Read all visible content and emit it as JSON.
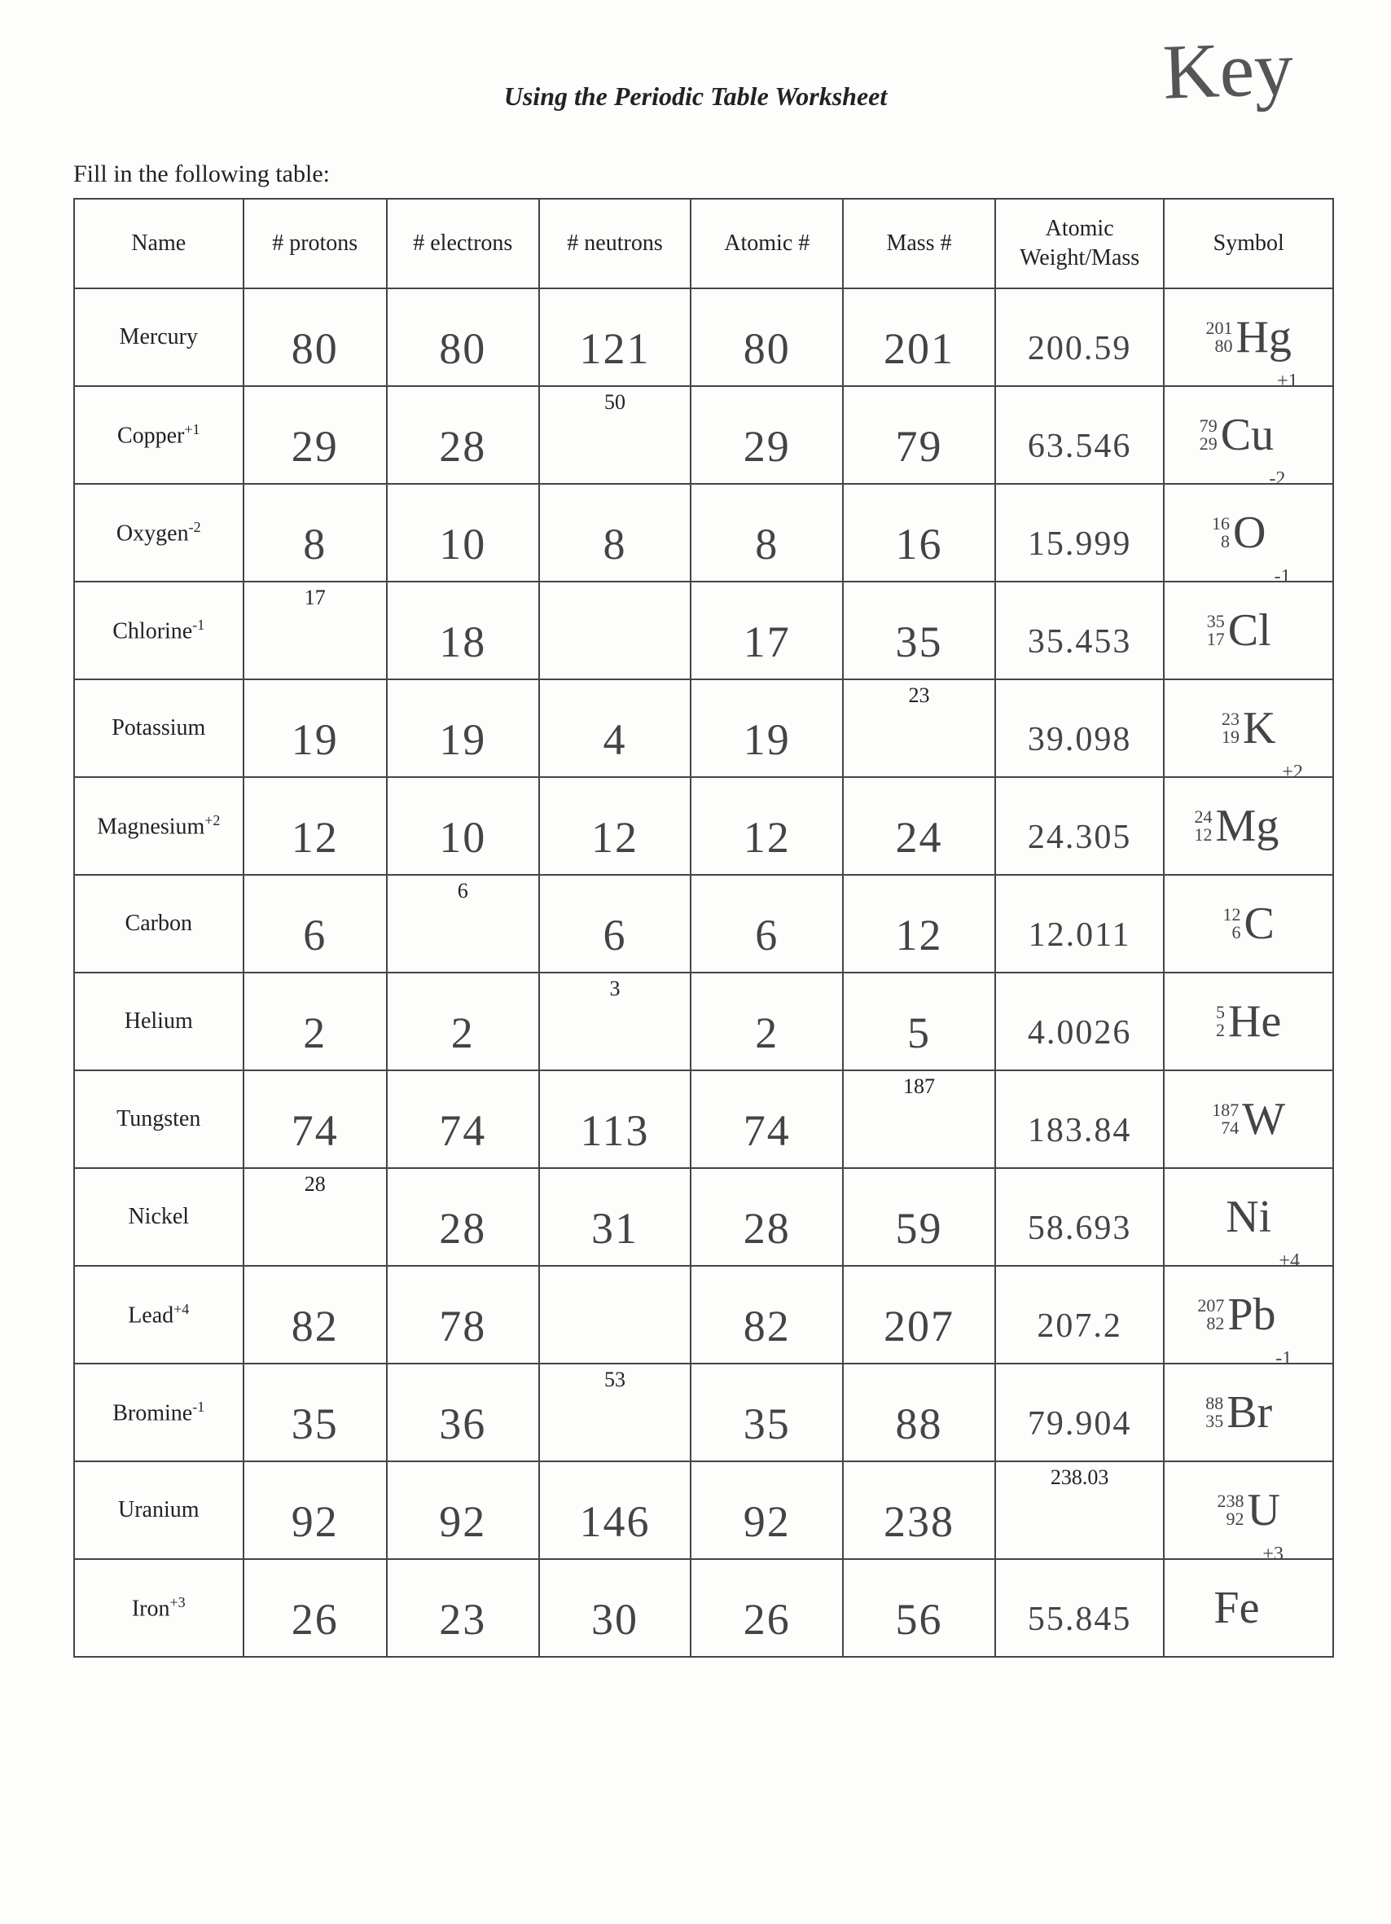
{
  "title": "Using the Periodic Table Worksheet",
  "key_label": "Key",
  "instruction": "Fill in the following table:",
  "columns": [
    "Name",
    "# protons",
    "# electrons",
    "# neutrons",
    "Atomic #",
    "Mass #",
    "Atomic Weight/Mass",
    "Symbol"
  ],
  "rows": [
    {
      "name": "Mercury",
      "charge": "",
      "protons": {
        "given": "",
        "hand": "80"
      },
      "electrons": {
        "given": "",
        "hand": "80"
      },
      "neutrons": {
        "given": "",
        "hand": "121"
      },
      "atomic": {
        "given": "",
        "hand": "80"
      },
      "mass": {
        "given": "",
        "hand": "201"
      },
      "weight": {
        "given": "",
        "hand": "200.59"
      },
      "symbol": {
        "top": "201",
        "bottom": "80",
        "main": "Hg",
        "chg": ""
      }
    },
    {
      "name": "Copper",
      "charge": "+1",
      "protons": {
        "given": "",
        "hand": "29"
      },
      "electrons": {
        "given": "",
        "hand": "28"
      },
      "neutrons": {
        "given": "50",
        "hand": ""
      },
      "atomic": {
        "given": "",
        "hand": "29"
      },
      "mass": {
        "given": "",
        "hand": "79"
      },
      "weight": {
        "given": "",
        "hand": "63.546"
      },
      "symbol": {
        "top": "79",
        "bottom": "29",
        "main": "Cu",
        "chg": "+1"
      }
    },
    {
      "name": "Oxygen",
      "charge": "-2",
      "protons": {
        "given": "",
        "hand": "8"
      },
      "electrons": {
        "given": "",
        "hand": "10"
      },
      "neutrons": {
        "given": "",
        "hand": "8"
      },
      "atomic": {
        "given": "",
        "hand": "8"
      },
      "mass": {
        "given": "",
        "hand": "16"
      },
      "weight": {
        "given": "",
        "hand": "15.999"
      },
      "symbol": {
        "top": "16",
        "bottom": "8",
        "main": "O",
        "chg": "-2"
      }
    },
    {
      "name": "Chlorine",
      "charge": "-1",
      "protons": {
        "given": "17",
        "hand": ""
      },
      "electrons": {
        "given": "",
        "hand": "18"
      },
      "neutrons": {
        "given": "",
        "hand": ""
      },
      "atomic": {
        "given": "",
        "hand": "17"
      },
      "mass": {
        "given": "",
        "hand": "35"
      },
      "weight": {
        "given": "",
        "hand": "35.453"
      },
      "symbol": {
        "top": "35",
        "bottom": "17",
        "main": "Cl",
        "chg": "-1"
      }
    },
    {
      "name": "Potassium",
      "charge": "",
      "protons": {
        "given": "",
        "hand": "19"
      },
      "electrons": {
        "given": "",
        "hand": "19"
      },
      "neutrons": {
        "given": "",
        "hand": "4"
      },
      "atomic": {
        "given": "",
        "hand": "19"
      },
      "mass": {
        "given": "23",
        "hand": ""
      },
      "weight": {
        "given": "",
        "hand": "39.098"
      },
      "symbol": {
        "top": "23",
        "bottom": "19",
        "main": "K",
        "chg": ""
      }
    },
    {
      "name": "Magnesium",
      "charge": "+2",
      "protons": {
        "given": "",
        "hand": "12"
      },
      "electrons": {
        "given": "",
        "hand": "10"
      },
      "neutrons": {
        "given": "",
        "hand": "12"
      },
      "atomic": {
        "given": "",
        "hand": "12"
      },
      "mass": {
        "given": "",
        "hand": "24"
      },
      "weight": {
        "given": "",
        "hand": "24.305"
      },
      "symbol": {
        "top": "24",
        "bottom": "12",
        "main": "Mg",
        "chg": "+2"
      }
    },
    {
      "name": "Carbon",
      "charge": "",
      "protons": {
        "given": "",
        "hand": "6"
      },
      "electrons": {
        "given": "6",
        "hand": ""
      },
      "neutrons": {
        "given": "",
        "hand": "6"
      },
      "atomic": {
        "given": "",
        "hand": "6"
      },
      "mass": {
        "given": "",
        "hand": "12"
      },
      "weight": {
        "given": "",
        "hand": "12.011"
      },
      "symbol": {
        "top": "12",
        "bottom": "6",
        "main": "C",
        "chg": ""
      }
    },
    {
      "name": "Helium",
      "charge": "",
      "protons": {
        "given": "",
        "hand": "2"
      },
      "electrons": {
        "given": "",
        "hand": "2"
      },
      "neutrons": {
        "given": "3",
        "hand": ""
      },
      "atomic": {
        "given": "",
        "hand": "2"
      },
      "mass": {
        "given": "",
        "hand": "5"
      },
      "weight": {
        "given": "",
        "hand": "4.0026"
      },
      "symbol": {
        "top": "5",
        "bottom": "2",
        "main": "He",
        "chg": ""
      }
    },
    {
      "name": "Tungsten",
      "charge": "",
      "protons": {
        "given": "",
        "hand": "74"
      },
      "electrons": {
        "given": "",
        "hand": "74"
      },
      "neutrons": {
        "given": "",
        "hand": "113"
      },
      "atomic": {
        "given": "",
        "hand": "74"
      },
      "mass": {
        "given": "187",
        "hand": ""
      },
      "weight": {
        "given": "",
        "hand": "183.84"
      },
      "symbol": {
        "top": "187",
        "bottom": "74",
        "main": "W",
        "chg": ""
      }
    },
    {
      "name": "Nickel",
      "charge": "",
      "protons": {
        "given": "28",
        "hand": ""
      },
      "electrons": {
        "given": "",
        "hand": "28"
      },
      "neutrons": {
        "given": "",
        "hand": "31"
      },
      "atomic": {
        "given": "",
        "hand": "28"
      },
      "mass": {
        "given": "",
        "hand": "59"
      },
      "weight": {
        "given": "",
        "hand": "58.693"
      },
      "symbol": {
        "top": "",
        "bottom": "",
        "main": "Ni",
        "chg": ""
      }
    },
    {
      "name": "Lead",
      "charge": "+4",
      "protons": {
        "given": "",
        "hand": "82"
      },
      "electrons": {
        "given": "",
        "hand": "78"
      },
      "neutrons": {
        "given": "",
        "hand": ""
      },
      "atomic": {
        "given": "",
        "hand": "82"
      },
      "mass": {
        "given": "",
        "hand": "207"
      },
      "weight": {
        "given": "",
        "hand": "207.2"
      },
      "symbol": {
        "top": "207",
        "bottom": "82",
        "main": "Pb",
        "chg": "+4"
      }
    },
    {
      "name": "Bromine",
      "charge": "-1",
      "protons": {
        "given": "",
        "hand": "35"
      },
      "electrons": {
        "given": "",
        "hand": "36"
      },
      "neutrons": {
        "given": "53",
        "hand": ""
      },
      "atomic": {
        "given": "",
        "hand": "35"
      },
      "mass": {
        "given": "",
        "hand": "88"
      },
      "weight": {
        "given": "",
        "hand": "79.904"
      },
      "symbol": {
        "top": "88",
        "bottom": "35",
        "main": "Br",
        "chg": "-1"
      }
    },
    {
      "name": "Uranium",
      "charge": "",
      "protons": {
        "given": "",
        "hand": "92"
      },
      "electrons": {
        "given": "",
        "hand": "92"
      },
      "neutrons": {
        "given": "",
        "hand": "146"
      },
      "atomic": {
        "given": "",
        "hand": "92"
      },
      "mass": {
        "given": "",
        "hand": "238"
      },
      "weight": {
        "given": "238.03",
        "hand": ""
      },
      "symbol": {
        "top": "238",
        "bottom": "92",
        "main": "U",
        "chg": ""
      }
    },
    {
      "name": "Iron",
      "charge": "+3",
      "protons": {
        "given": "",
        "hand": "26"
      },
      "electrons": {
        "given": "",
        "hand": "23"
      },
      "neutrons": {
        "given": "",
        "hand": "30"
      },
      "atomic": {
        "given": "",
        "hand": "26"
      },
      "mass": {
        "given": "",
        "hand": "56"
      },
      "weight": {
        "given": "",
        "hand": "55.845"
      },
      "symbol": {
        "top": "",
        "bottom": "",
        "main": "Fe",
        "chg": "+3"
      }
    }
  ]
}
